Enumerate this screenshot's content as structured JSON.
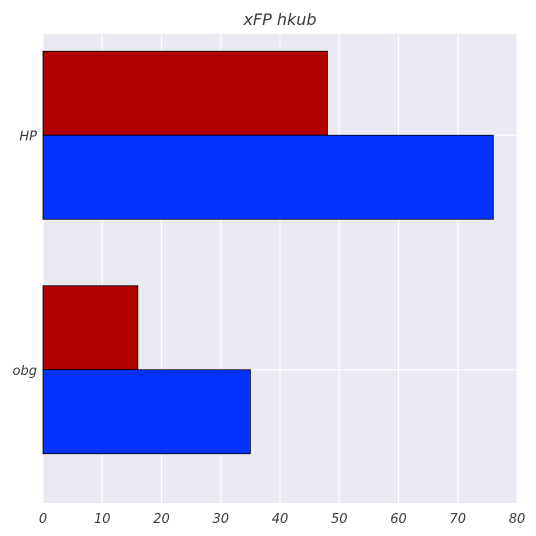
{
  "chart_data": {
    "type": "bar",
    "orientation": "horizontal",
    "title": "xFP hkub",
    "xlabel": "",
    "ylabel": "",
    "categories": [
      "HP",
      "obg"
    ],
    "series": [
      {
        "color": "#b00000",
        "values": [
          48,
          16
        ]
      },
      {
        "color": "#0433ff",
        "values": [
          76,
          35
        ]
      }
    ],
    "xlim": [
      0,
      80
    ],
    "xticks": [
      0,
      10,
      20,
      30,
      40,
      50,
      60,
      70,
      80
    ],
    "grid": true,
    "background": "#eaeaf2",
    "legend": "none"
  }
}
